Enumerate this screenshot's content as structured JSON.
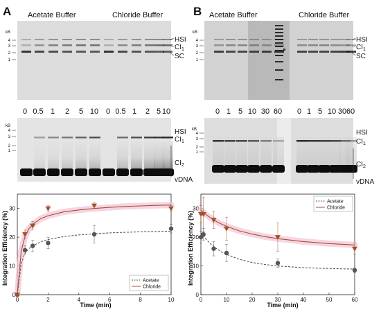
{
  "panel_a": {
    "letter": "A",
    "gel_top": {
      "left_label": "Acetate Buffer",
      "right_label": "Chloride Buffer",
      "kb_unit": "kB",
      "kb_ticks": [
        "4",
        "3",
        "2",
        "1"
      ],
      "bands": [
        "HSI",
        "CI",
        "SC"
      ]
    },
    "time_labels": [
      "0",
      "0.5",
      "1",
      "2",
      "5",
      "10",
      "0",
      "0.5",
      "1",
      "2",
      "5",
      "10"
    ],
    "gel_bottom": {
      "kb_unit": "kB",
      "kb_ticks": [
        "4",
        "3",
        "2",
        "1"
      ],
      "bands": [
        "HSI",
        "CI",
        "CI",
        "vDNA"
      ]
    }
  },
  "panel_b": {
    "letter": "B",
    "gel_top": {
      "left_label": "Acetate Buffer",
      "right_label": "Chloride Buffer",
      "kb_unit": "kB",
      "kb_ticks": [
        "4",
        "3",
        "2",
        "1"
      ],
      "bands": [
        "HSI",
        "CI",
        "SC"
      ]
    },
    "time_labels": [
      "0",
      "1",
      "5",
      "10",
      "30",
      "60",
      "0",
      "1",
      "5",
      "10",
      "30",
      "60"
    ],
    "gel_bottom": {
      "kb_unit": "kB",
      "kb_ticks": [
        "4",
        "3",
        "2",
        "1"
      ],
      "bands": [
        "HSI",
        "CI",
        "CI",
        "vDNA"
      ]
    }
  },
  "subscripts": {
    "one": "1",
    "two": "2"
  },
  "colors": {
    "acetate": "#555555",
    "chloride": "#a0522d",
    "band_glow": "#f3c2d6"
  },
  "chart_data": [
    {
      "type": "scatter",
      "panel": "A",
      "xlabel": "Time (min)",
      "ylabel": "Integration Efficiency (%)",
      "xlim": [
        0,
        10
      ],
      "ylim": [
        0,
        35
      ],
      "xticks": [
        "0",
        "2",
        "4",
        "6",
        "8",
        "10"
      ],
      "yticks": [
        "0",
        "10",
        "20",
        "30"
      ],
      "legend_position": "bottom-right",
      "series": [
        {
          "name": "Acetate",
          "marker": "circle",
          "line": "dashed",
          "x": [
            0,
            0.5,
            1,
            2,
            5,
            10
          ],
          "y": [
            0,
            15.5,
            17,
            18,
            21,
            23
          ],
          "err": [
            0.5,
            1.5,
            2,
            2,
            3,
            1.5
          ],
          "fit_x": [
            0,
            0.25,
            0.5,
            0.75,
            1,
            1.5,
            2,
            3,
            4,
            5,
            6,
            7,
            8,
            9,
            10
          ],
          "fit_y": [
            0,
            10.9,
            14.4,
            16.0,
            17.0,
            18.3,
            19.2,
            20.2,
            20.8,
            21.2,
            21.5,
            21.7,
            21.9,
            22.0,
            22.1
          ]
        },
        {
          "name": "Chloride",
          "marker": "triangle-down",
          "line": "solid",
          "x": [
            0,
            0.5,
            1,
            2,
            5,
            10
          ],
          "y": [
            0,
            21,
            24,
            30,
            31,
            30
          ],
          "err": [
            0.5,
            1.5,
            1.5,
            1,
            1,
            1
          ],
          "fit_x": [
            0,
            0.25,
            0.5,
            0.75,
            1,
            1.5,
            2,
            3,
            4,
            5,
            6,
            7,
            8,
            9,
            10
          ],
          "fit_y": [
            0,
            15.1,
            20.3,
            22.9,
            24.5,
            26.4,
            27.5,
            28.8,
            29.5,
            30.0,
            30.4,
            30.7,
            30.9,
            31.1,
            31.2
          ]
        }
      ]
    },
    {
      "type": "scatter",
      "panel": "B",
      "xlabel": "Time (min)",
      "ylabel": "Integration Efficiency (%)",
      "xlim": [
        0,
        60
      ],
      "ylim": [
        0,
        35
      ],
      "xticks": [
        "0",
        "10",
        "20",
        "30",
        "40",
        "50",
        "60"
      ],
      "yticks": [
        "0",
        "10",
        "20",
        "30"
      ],
      "legend_position": "top-right",
      "series": [
        {
          "name": "Acetate",
          "marker": "circle",
          "line": "dashed",
          "x": [
            0,
            1,
            5,
            10,
            30,
            60
          ],
          "y": [
            20,
            21,
            16,
            14.5,
            11,
            8.5
          ],
          "err": [
            2,
            2,
            2.5,
            3,
            1.5,
            0.8
          ],
          "fit_x": [
            0,
            2,
            4,
            6,
            8,
            10,
            15,
            20,
            25,
            30,
            40,
            50,
            60
          ],
          "fit_y": [
            21.5,
            19.3,
            17.5,
            16.1,
            14.9,
            14.0,
            12.3,
            11.2,
            10.5,
            10.0,
            9.4,
            9.1,
            8.9
          ]
        },
        {
          "name": "Chloride",
          "marker": "triangle-down",
          "line": "solid",
          "x": [
            0,
            1,
            5,
            10,
            30,
            60
          ],
          "y": [
            28,
            28,
            26,
            23,
            20,
            16
          ],
          "err": [
            3,
            6,
            3,
            4,
            5,
            2
          ],
          "fit_x": [
            0,
            2,
            4,
            6,
            8,
            10,
            15,
            20,
            25,
            30,
            40,
            50,
            60
          ],
          "fit_y": [
            29.5,
            27.9,
            26.6,
            25.5,
            24.6,
            23.8,
            22.2,
            21.1,
            20.2,
            19.5,
            18.5,
            17.8,
            17.3
          ]
        }
      ]
    }
  ]
}
